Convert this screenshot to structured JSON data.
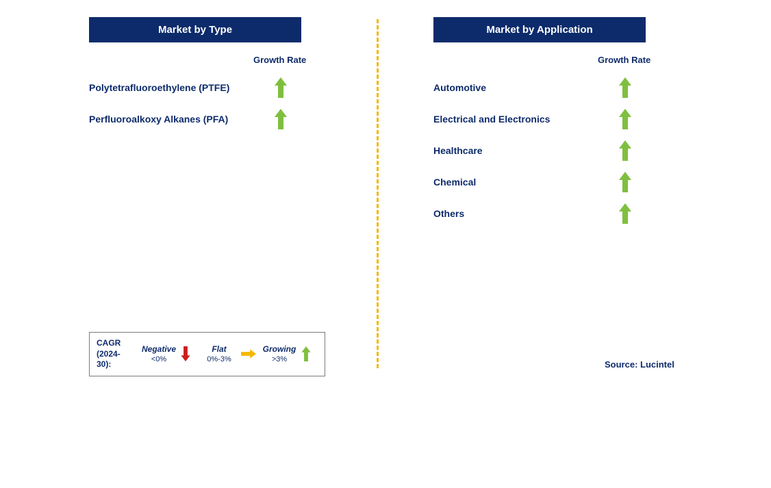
{
  "colors": {
    "navy": "#0d2b6b",
    "white": "#ffffff",
    "green": "#7fbf3f",
    "red": "#cc1f1f",
    "yellow": "#f5b800",
    "divider": "#f5b800",
    "border": "#7a7a7a"
  },
  "leftPanel": {
    "title": "Market by Type",
    "columnHeader": "Growth Rate",
    "rows": [
      {
        "label": "Polytetrafluoroethylene (PTFE)",
        "growth": "up"
      },
      {
        "label": "Perfluoroalkoxy Alkanes (PFA)",
        "growth": "up"
      }
    ]
  },
  "rightPanel": {
    "title": "Market by Application",
    "columnHeader": "Growth Rate",
    "rows": [
      {
        "label": "Automotive",
        "growth": "up"
      },
      {
        "label": "Electrical and Electronics",
        "growth": "up"
      },
      {
        "label": "Healthcare",
        "growth": "up"
      },
      {
        "label": "Chemical",
        "growth": "up"
      },
      {
        "label": "Others",
        "growth": "up"
      }
    ]
  },
  "legend": {
    "titleLine1": "CAGR",
    "titleLine2": "(2024-30):",
    "items": [
      {
        "label": "Negative",
        "range": "<0%",
        "arrow": "down",
        "color": "#cc1f1f"
      },
      {
        "label": "Flat",
        "range": "0%-3%",
        "arrow": "right",
        "color": "#f5b800"
      },
      {
        "label": "Growing",
        "range": ">3%",
        "arrow": "up",
        "color": "#7fbf3f"
      }
    ]
  },
  "source": "Source: Lucintel",
  "arrowStyle": {
    "large": {
      "width": 18,
      "height": 30
    },
    "small": {
      "width": 14,
      "height": 22
    }
  }
}
